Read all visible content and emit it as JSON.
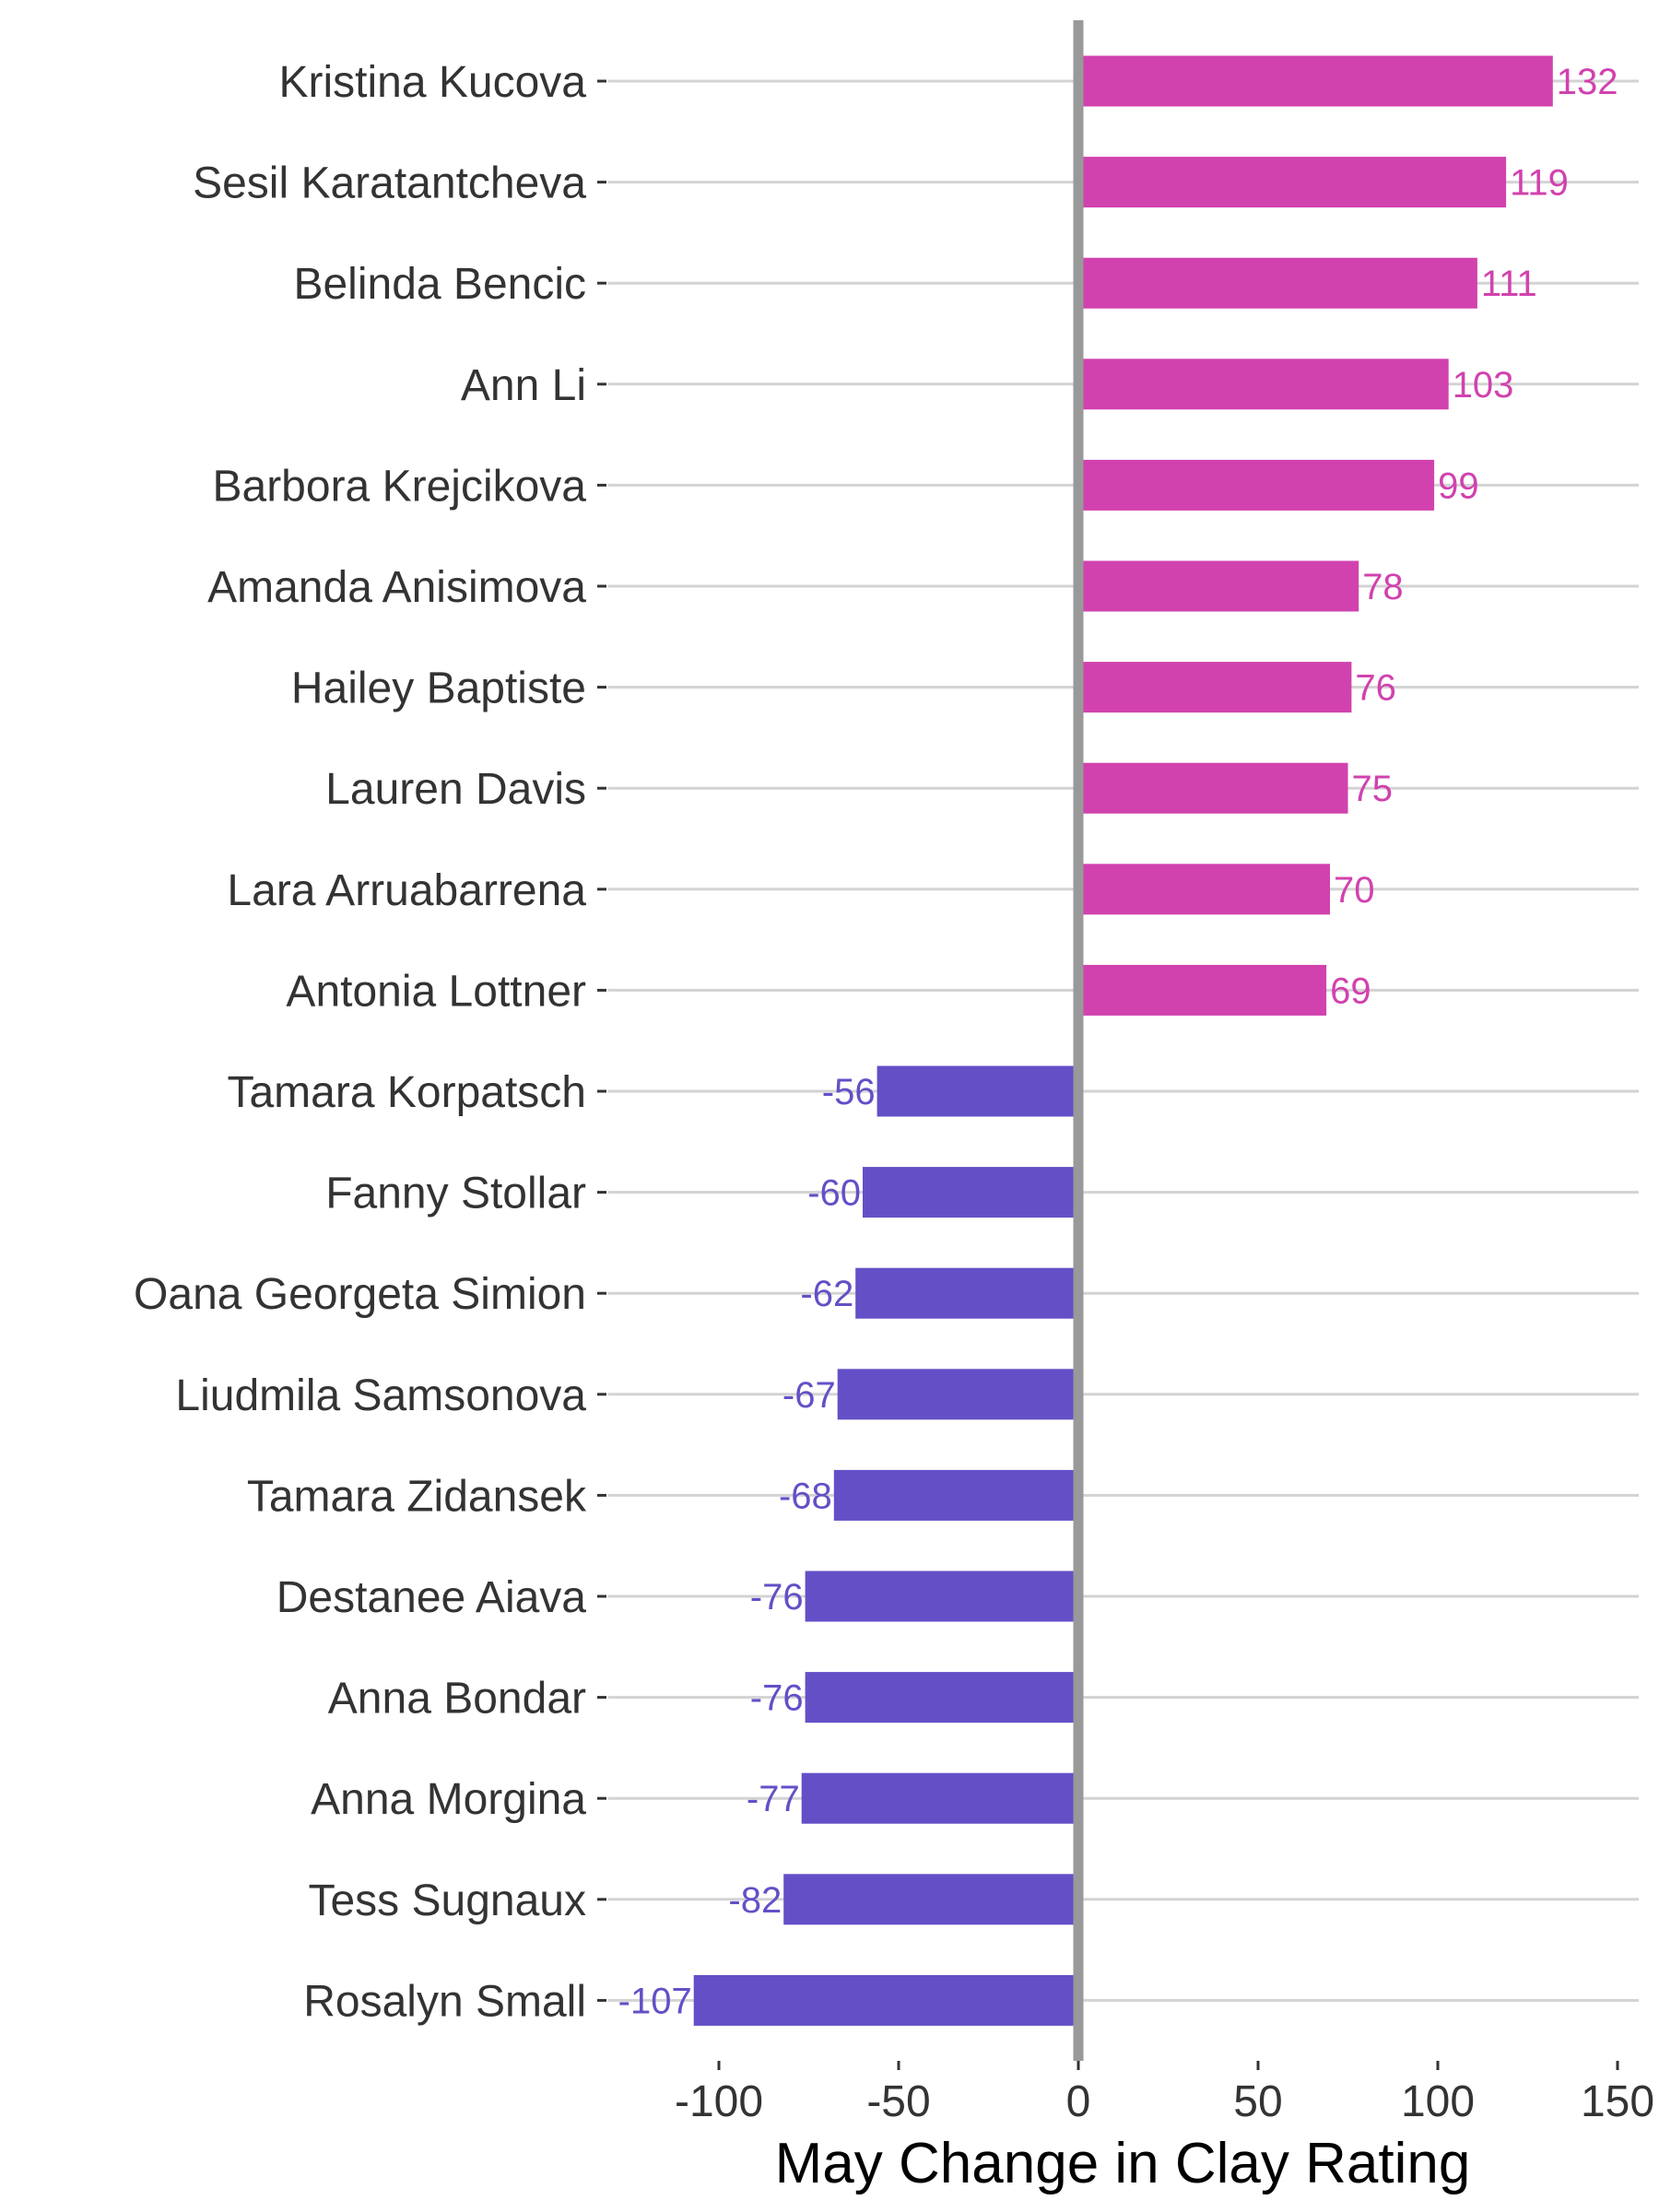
{
  "chart_data": {
    "type": "bar",
    "orientation": "horizontal",
    "title": "",
    "xlabel": "May Change in Clay Rating",
    "ylabel": "",
    "xlim": [
      -127,
      153
    ],
    "xticks": [
      -100,
      -50,
      0,
      50,
      100,
      150
    ],
    "grid": "horizontal-lines-only",
    "zero_line": true,
    "colors": {
      "positive": "#D142AE",
      "negative": "#654FC7",
      "zero_line": "#999999",
      "grid": "#D3D3D3"
    },
    "categories": [
      "Kristina Kucova",
      "Sesil Karatantcheva",
      "Belinda Bencic",
      "Ann Li",
      "Barbora Krejcikova",
      "Amanda Anisimova",
      "Hailey Baptiste",
      "Lauren Davis",
      "Lara Arruabarrena",
      "Antonia Lottner",
      "Tamara Korpatsch",
      "Fanny Stollar",
      "Oana Georgeta Simion",
      "Liudmila Samsonova",
      "Tamara Zidansek",
      "Destanee Aiava",
      "Anna Bondar",
      "Anna Morgina",
      "Tess Sugnaux",
      "Rosalyn Small"
    ],
    "values": [
      132,
      119,
      111,
      103,
      99,
      78,
      76,
      75,
      70,
      69,
      -56,
      -60,
      -62,
      -67,
      -68,
      -76,
      -76,
      -77,
      -82,
      -107
    ]
  }
}
